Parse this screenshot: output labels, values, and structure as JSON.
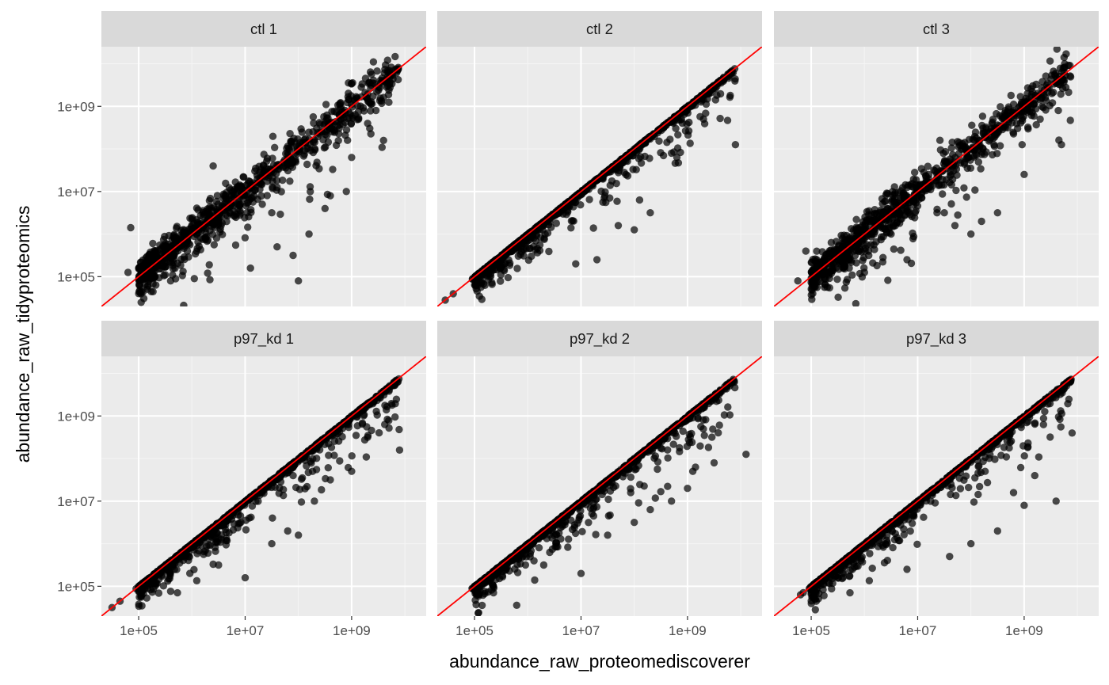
{
  "chart_data": {
    "type": "scatter",
    "xlabel": "abundance_raw_proteomediscoverer",
    "ylabel": "abundance_raw_tidyproteomics",
    "x_scale": "log10",
    "y_scale": "log10",
    "xlim": [
      4.3,
      10.4
    ],
    "ylim": [
      4.3,
      10.4
    ],
    "x_ticks": [
      {
        "value": 100000,
        "label": "1e+05"
      },
      {
        "value": 10000000,
        "label": "1e+07"
      },
      {
        "value": 1000000000,
        "label": "1e+09"
      }
    ],
    "y_ticks": [
      {
        "value": 100000,
        "label": "1e+05"
      },
      {
        "value": 10000000,
        "label": "1e+07"
      },
      {
        "value": 1000000000,
        "label": "1e+09"
      }
    ],
    "reference_line": {
      "slope": 1,
      "intercept": 0,
      "color": "#ff0000"
    },
    "point_color": "#000000",
    "point_alpha": 0.7,
    "grid": true,
    "layout": {
      "rows": 2,
      "cols": 3,
      "shared_axes": true
    },
    "panels": [
      {
        "label": "ctl 1",
        "pattern": "scatter_both",
        "outliers": [
          [
            4.8,
            5.1
          ],
          [
            4.85,
            6.15
          ],
          [
            5.3,
            5.0
          ],
          [
            5.6,
            4.9
          ],
          [
            6.4,
            7.6
          ],
          [
            7.9,
            5.5
          ],
          [
            8.0,
            4.9
          ],
          [
            7.1,
            5.2
          ],
          [
            7.5,
            6.5
          ],
          [
            9.6,
            8.2
          ],
          [
            9.3,
            8.6
          ],
          [
            8.5,
            6.6
          ],
          [
            8.9,
            7.0
          ],
          [
            9.0,
            7.8
          ],
          [
            8.2,
            6.0
          ],
          [
            7.6,
            5.7
          ],
          [
            8.6,
            6.9
          ]
        ]
      },
      {
        "label": "ctl 2",
        "pattern": "below_diagonal",
        "outliers": [
          [
            4.45,
            4.45
          ],
          [
            4.6,
            4.6
          ],
          [
            6.9,
            5.3
          ],
          [
            7.3,
            5.4
          ],
          [
            8.7,
            7.9
          ],
          [
            9.9,
            8.1
          ],
          [
            8.1,
            6.8
          ],
          [
            8.0,
            6.1
          ],
          [
            8.3,
            6.5
          ],
          [
            7.7,
            6.2
          ],
          [
            8.8,
            7.8
          ],
          [
            9.3,
            8.7
          ]
        ]
      },
      {
        "label": "ctl 3",
        "pattern": "scatter_both",
        "outliers": [
          [
            4.75,
            4.9
          ],
          [
            4.9,
            5.6
          ],
          [
            5.25,
            4.75
          ],
          [
            6.0,
            5.1
          ],
          [
            5.8,
            5.6
          ],
          [
            6.8,
            5.4
          ],
          [
            6.5,
            6.0
          ],
          [
            8.2,
            6.3
          ],
          [
            8.5,
            6.5
          ],
          [
            9.0,
            7.4
          ],
          [
            9.7,
            8.1
          ],
          [
            9.3,
            8.7
          ],
          [
            7.5,
            6.5
          ],
          [
            8.0,
            6.0
          ],
          [
            7.7,
            6.2
          ]
        ]
      },
      {
        "label": "p97_kd 1",
        "pattern": "below_diagonal",
        "outliers": [
          [
            4.5,
            4.5
          ],
          [
            4.65,
            4.65
          ],
          [
            6.5,
            5.5
          ],
          [
            7.0,
            5.2
          ],
          [
            7.5,
            6.0
          ],
          [
            7.8,
            6.3
          ],
          [
            8.0,
            6.2
          ],
          [
            9.9,
            8.2
          ],
          [
            9.3,
            8.5
          ],
          [
            8.6,
            7.5
          ],
          [
            9.0,
            7.7
          ],
          [
            8.3,
            7.0
          ]
        ]
      },
      {
        "label": "p97_kd 2",
        "pattern": "below_diagonal",
        "outliers": [
          [
            5.0,
            5.0
          ],
          [
            6.3,
            5.5
          ],
          [
            7.0,
            5.3
          ],
          [
            7.5,
            6.2
          ],
          [
            8.3,
            6.8
          ],
          [
            9.1,
            7.7
          ],
          [
            9.5,
            7.9
          ],
          [
            10.1,
            8.1
          ],
          [
            8.7,
            7.0
          ],
          [
            9.0,
            7.3
          ],
          [
            8.0,
            6.5
          ]
        ]
      },
      {
        "label": "p97_kd 3",
        "pattern": "below_diagonal",
        "outliers": [
          [
            4.8,
            4.8
          ],
          [
            4.85,
            4.85
          ],
          [
            6.8,
            5.4
          ],
          [
            7.6,
            5.7
          ],
          [
            8.0,
            6.0
          ],
          [
            8.5,
            6.3
          ],
          [
            9.6,
            7.0
          ],
          [
            10.5,
            8.3
          ],
          [
            9.9,
            8.6
          ],
          [
            9.2,
            7.6
          ],
          [
            9.0,
            6.9
          ],
          [
            8.8,
            7.2
          ]
        ]
      }
    ]
  }
}
